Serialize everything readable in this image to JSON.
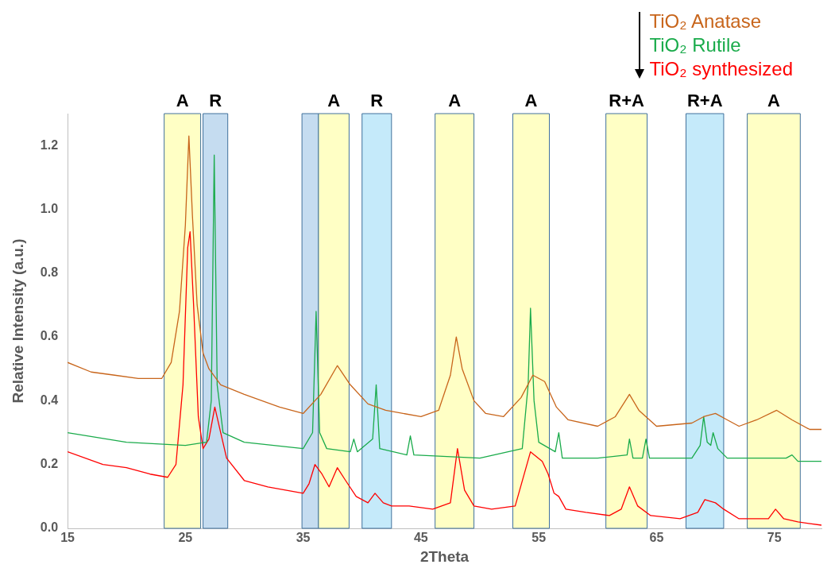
{
  "chart_data": {
    "type": "line",
    "xlabel": "2Theta",
    "ylabel": "Relative Intensity (a.u.)",
    "xlim": [
      15,
      79
    ],
    "xticks": [
      15,
      25,
      35,
      45,
      55,
      65,
      75
    ],
    "ylim": [
      0,
      1.3
    ],
    "yticks": [
      {
        "value": 0,
        "label": "0.0"
      },
      {
        "value": 0.2,
        "label": "0.2"
      },
      {
        "value": 0.4,
        "label": "0.4"
      },
      {
        "value": 0.6,
        "label": "0.6"
      },
      {
        "value": 0.8,
        "label": "0.8"
      },
      {
        "value": 1,
        "label": "1.0"
      },
      {
        "value": 1.2,
        "label": "1.2"
      }
    ],
    "grid": false,
    "legend": "top right",
    "marker": "none",
    "line_style": "solid",
    "series": [
      {
        "name": "TiO₂ Anatase",
        "color": "#c8651b",
        "x": [
          15,
          17,
          19,
          21,
          23,
          23.8,
          24.5,
          25,
          25.3,
          25.6,
          26,
          26.5,
          27,
          28,
          30,
          33,
          35,
          36.5,
          37.9,
          39,
          40.5,
          42,
          45,
          46.5,
          47.5,
          48,
          48.5,
          49.5,
          50.5,
          52,
          53.5,
          54.5,
          55.5,
          56.5,
          57.5,
          60,
          61.5,
          62.7,
          63.5,
          65,
          68,
          69,
          70,
          71,
          72,
          73.5,
          75.2,
          76.5,
          78,
          79
        ],
        "values": [
          0.52,
          0.49,
          0.48,
          0.47,
          0.47,
          0.52,
          0.68,
          0.95,
          1.23,
          0.98,
          0.7,
          0.55,
          0.5,
          0.45,
          0.42,
          0.38,
          0.36,
          0.42,
          0.51,
          0.45,
          0.39,
          0.37,
          0.35,
          0.37,
          0.48,
          0.6,
          0.5,
          0.4,
          0.36,
          0.35,
          0.41,
          0.48,
          0.46,
          0.38,
          0.34,
          0.32,
          0.35,
          0.42,
          0.37,
          0.32,
          0.33,
          0.35,
          0.36,
          0.34,
          0.32,
          0.34,
          0.37,
          0.34,
          0.31,
          0.31
        ]
      },
      {
        "name": "TiO₂ Rutile",
        "color": "#1aab4b",
        "x": [
          15,
          20,
          25,
          26.8,
          27.2,
          27.45,
          27.7,
          28.2,
          30,
          35,
          35.8,
          36.1,
          36.4,
          37,
          39,
          39.3,
          39.6,
          40.9,
          41.2,
          41.5,
          43.8,
          44.1,
          44.4,
          50,
          53.6,
          54.1,
          54.3,
          54.6,
          55,
          56.4,
          56.7,
          57,
          60,
          62.5,
          62.7,
          63,
          63.8,
          64.1,
          64.4,
          68,
          68.7,
          69,
          69.3,
          69.6,
          69.8,
          70.2,
          71,
          76,
          76.5,
          77,
          79
        ],
        "values": [
          0.3,
          0.27,
          0.26,
          0.27,
          0.4,
          1.17,
          0.45,
          0.3,
          0.27,
          0.25,
          0.3,
          0.68,
          0.3,
          0.25,
          0.24,
          0.28,
          0.24,
          0.28,
          0.45,
          0.25,
          0.23,
          0.29,
          0.23,
          0.22,
          0.25,
          0.45,
          0.69,
          0.4,
          0.27,
          0.24,
          0.3,
          0.22,
          0.22,
          0.23,
          0.28,
          0.22,
          0.22,
          0.28,
          0.22,
          0.22,
          0.26,
          0.35,
          0.27,
          0.26,
          0.3,
          0.25,
          0.22,
          0.22,
          0.23,
          0.21,
          0.21
        ]
      },
      {
        "name": "TiO₂ synthesized",
        "color": "#ff0000",
        "x": [
          15,
          18,
          20,
          22,
          23.5,
          24.2,
          24.8,
          25.2,
          25.4,
          25.7,
          26.1,
          26.5,
          27,
          27.5,
          28,
          28.5,
          30,
          32,
          35,
          35.5,
          36,
          36.6,
          37.2,
          37.9,
          38.6,
          39.5,
          40.5,
          41.1,
          41.8,
          42.5,
          44,
          46,
          47.5,
          48.1,
          48.7,
          49.5,
          51,
          53,
          54.3,
          55.3,
          55.8,
          56.3,
          56.7,
          57.3,
          59,
          61,
          62,
          62.7,
          63.4,
          64.5,
          67,
          68.5,
          69.1,
          70,
          70.7,
          72,
          74.5,
          75.1,
          75.8,
          77,
          79
        ],
        "values": [
          0.24,
          0.2,
          0.19,
          0.17,
          0.16,
          0.2,
          0.45,
          0.88,
          0.93,
          0.7,
          0.35,
          0.25,
          0.28,
          0.38,
          0.3,
          0.22,
          0.15,
          0.13,
          0.11,
          0.14,
          0.2,
          0.17,
          0.13,
          0.19,
          0.15,
          0.1,
          0.08,
          0.11,
          0.08,
          0.07,
          0.07,
          0.06,
          0.08,
          0.25,
          0.12,
          0.07,
          0.06,
          0.07,
          0.24,
          0.21,
          0.17,
          0.11,
          0.1,
          0.06,
          0.05,
          0.04,
          0.06,
          0.13,
          0.07,
          0.04,
          0.03,
          0.05,
          0.09,
          0.08,
          0.06,
          0.03,
          0.03,
          0.06,
          0.03,
          0.02,
          0.01
        ]
      }
    ],
    "bands": [
      {
        "axis": "x",
        "from": 23.2,
        "to": 26.3,
        "label": "A",
        "color": "#ffffc5"
      },
      {
        "axis": "x",
        "from": 26.5,
        "to": 28.6,
        "label": "R",
        "color": "#c5dcf0"
      },
      {
        "axis": "x",
        "from": 34.9,
        "to": 36.3,
        "color": "#c5dcf0"
      },
      {
        "axis": "x",
        "from": 36.3,
        "to": 38.9,
        "label": "A",
        "color": "#ffffc5"
      },
      {
        "axis": "x",
        "from": 40.0,
        "to": 42.5,
        "label": "R",
        "color": "#c5eafa"
      },
      {
        "axis": "x",
        "from": 46.2,
        "to": 49.5,
        "label": "A",
        "color": "#ffffc5"
      },
      {
        "axis": "x",
        "from": 52.8,
        "to": 55.9,
        "label": "A",
        "color": "#ffffc5"
      },
      {
        "axis": "x",
        "from": 60.7,
        "to": 64.2,
        "label": "R+A",
        "color": "#ffffc5"
      },
      {
        "axis": "x",
        "from": 67.5,
        "to": 70.7,
        "label": "R+A",
        "color": "#c5eafa"
      },
      {
        "axis": "x",
        "from": 72.7,
        "to": 77.2,
        "label": "A",
        "color": "#ffffc5"
      }
    ]
  }
}
